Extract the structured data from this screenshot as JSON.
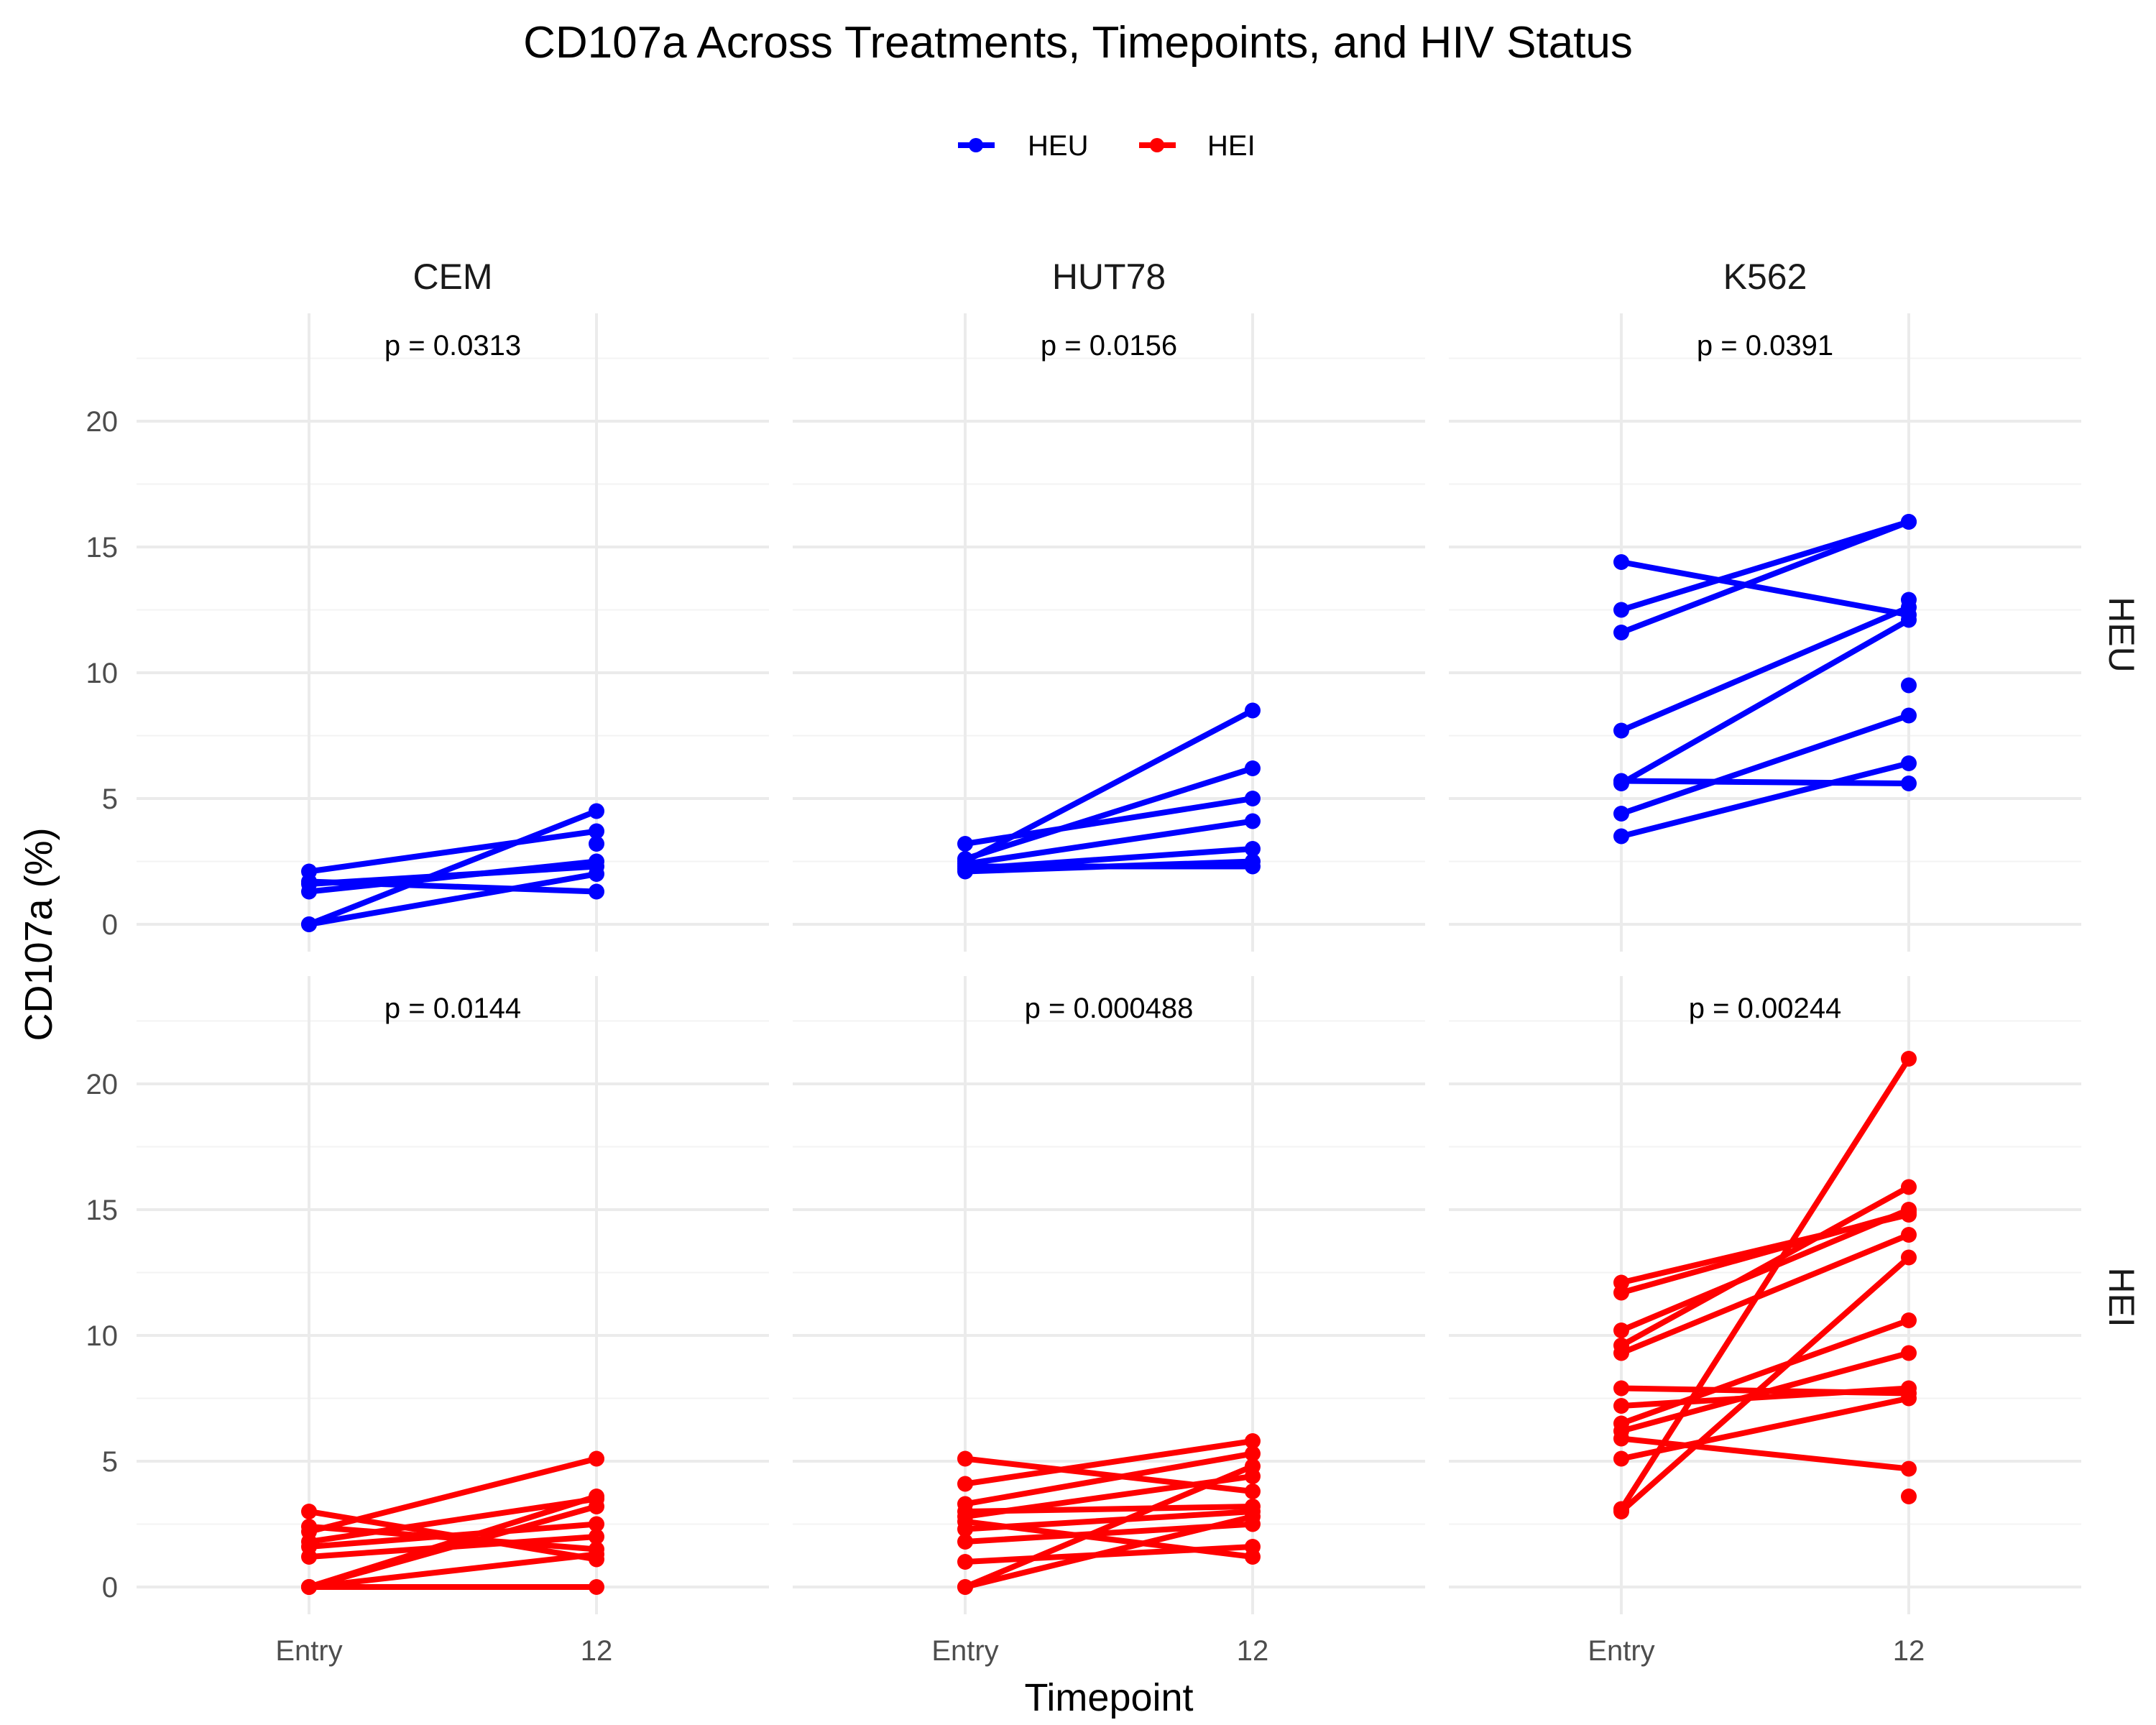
{
  "chart_data": {
    "type": "line",
    "title": "CD107a Across Treatments, Timepoints, and HIV Status",
    "xlabel": "Timepoint",
    "ylabel": "CD107a (%)",
    "x_categories": [
      "Entry",
      "12"
    ],
    "y_ticks": [
      "0",
      "5",
      "10",
      "15",
      "20"
    ],
    "ylim": [
      -1,
      23.5
    ],
    "grid": true,
    "legend": {
      "position": "top",
      "entries": [
        {
          "name": "HEU",
          "color": "#0000FF"
        },
        {
          "name": "HEI",
          "color": "#FF0000"
        }
      ]
    },
    "facets": {
      "columns": [
        "CEM",
        "HUT78",
        "K562"
      ],
      "rows": [
        "HEU",
        "HEI"
      ]
    },
    "panels": [
      {
        "column": "CEM",
        "row": "HEU",
        "color": "#0000FF",
        "p_label": "p = 0.0313",
        "pairs": [
          [
            0,
            4.5
          ],
          [
            0,
            2.0
          ],
          [
            1.6,
            2.3
          ],
          [
            1.3,
            2.5
          ],
          [
            2.1,
            3.7
          ],
          [
            1.7,
            1.3
          ]
        ],
        "extra_points": [
          {
            "timepoint": "12",
            "value": 3.2
          }
        ]
      },
      {
        "column": "HUT78",
        "row": "HEU",
        "color": "#0000FF",
        "p_label": "p = 0.0156",
        "pairs": [
          [
            2.5,
            8.5
          ],
          [
            2.6,
            6.2
          ],
          [
            3.2,
            5.0
          ],
          [
            2.4,
            4.1
          ],
          [
            2.2,
            3.0
          ],
          [
            2.1,
            2.5
          ],
          [
            2.3,
            2.3
          ]
        ],
        "extra_points": []
      },
      {
        "column": "K562",
        "row": "HEU",
        "color": "#0000FF",
        "p_label": "p = 0.0391",
        "pairs": [
          [
            14.4,
            12.3
          ],
          [
            12.5,
            16.0
          ],
          [
            11.6,
            16.0
          ],
          [
            7.7,
            12.6
          ],
          [
            5.6,
            12.1
          ],
          [
            5.7,
            5.6
          ],
          [
            4.4,
            8.3
          ],
          [
            3.5,
            6.4
          ]
        ],
        "extra_points": [
          {
            "timepoint": "12",
            "value": 12.9
          },
          {
            "timepoint": "12",
            "value": 9.5
          }
        ]
      },
      {
        "column": "CEM",
        "row": "HEI",
        "color": "#FF0000",
        "p_label": "p = 0.0144",
        "pairs": [
          [
            2.2,
            5.1
          ],
          [
            0,
            3.6
          ],
          [
            0,
            3.2
          ],
          [
            0,
            0
          ],
          [
            1.6,
            2.5
          ],
          [
            2.4,
            1.5
          ],
          [
            1.2,
            2.0
          ],
          [
            1.8,
            3.5
          ],
          [
            3.0,
            1.1
          ],
          [
            0,
            1.3
          ]
        ],
        "extra_points": []
      },
      {
        "column": "HUT78",
        "row": "HEI",
        "color": "#FF0000",
        "p_label": "p = 0.000488",
        "pairs": [
          [
            4.1,
            5.8
          ],
          [
            3.3,
            5.3
          ],
          [
            0,
            4.8
          ],
          [
            2.8,
            4.4
          ],
          [
            3.0,
            3.2
          ],
          [
            2.3,
            3.0
          ],
          [
            1.8,
            2.5
          ],
          [
            5.1,
            3.8
          ],
          [
            1.0,
            1.6
          ],
          [
            2.6,
            1.2
          ],
          [
            0,
            2.8
          ]
        ],
        "extra_points": []
      },
      {
        "column": "K562",
        "row": "HEI",
        "color": "#FF0000",
        "p_label": "p = 0.00244",
        "pairs": [
          [
            3.1,
            21.0
          ],
          [
            12.1,
            14.8
          ],
          [
            10.2,
            15.0
          ],
          [
            9.6,
            15.9
          ],
          [
            9.3,
            14.0
          ],
          [
            7.9,
            7.7
          ],
          [
            6.5,
            10.6
          ],
          [
            6.2,
            9.3
          ],
          [
            5.9,
            4.7
          ],
          [
            5.1,
            7.5
          ],
          [
            3.0,
            13.1
          ],
          [
            7.2,
            7.9
          ],
          [
            11.7,
            14.9
          ]
        ],
        "extra_points": [
          {
            "timepoint": "12",
            "value": 3.6
          }
        ]
      }
    ]
  }
}
